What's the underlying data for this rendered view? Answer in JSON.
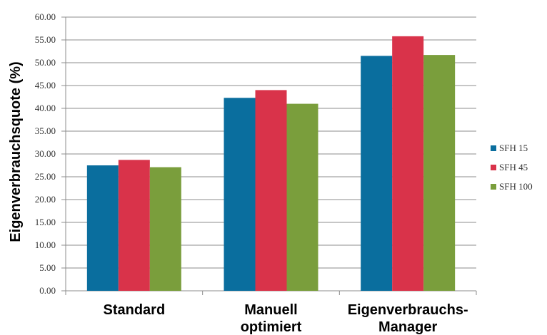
{
  "chart_data": {
    "type": "bar",
    "title": "",
    "xlabel": "",
    "ylabel": "Eigenverbrauchsquote (%)",
    "ylim": [
      0,
      60
    ],
    "y_ticks": [
      "0.00",
      "5.00",
      "10.00",
      "15.00",
      "20.00",
      "25.00",
      "30.00",
      "35.00",
      "40.00",
      "45.00",
      "50.00",
      "55.00",
      "60.00"
    ],
    "grid": true,
    "legend_position": "right",
    "categories": [
      [
        "Standard"
      ],
      [
        "Manuell",
        "optimiert"
      ],
      [
        "Eigenverbrauchs-",
        "Manager"
      ]
    ],
    "series": [
      {
        "name": "SFH 15",
        "color": "#0a6e9e",
        "values": [
          27.5,
          42.3,
          51.5
        ]
      },
      {
        "name": "SFH 45",
        "color": "#d9334a",
        "values": [
          28.7,
          44.0,
          55.8
        ]
      },
      {
        "name": "SFH 100",
        "color": "#7a9e3c",
        "values": [
          27.1,
          41.0,
          51.7
        ]
      }
    ]
  }
}
